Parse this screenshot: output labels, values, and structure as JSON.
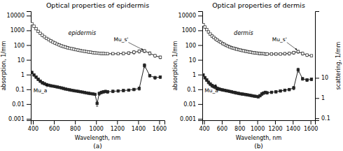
{
  "chart_data": [
    {
      "type": "line",
      "title": "Optical properties of epidermis",
      "subtitle": "(a)",
      "x_label": "Wavelength, nm",
      "y_label": "absorption, 1/mm",
      "annotations": [
        "epidermis",
        "Mu_s'",
        "Mu_a"
      ],
      "log": "y",
      "grid": false,
      "x": [
        390,
        410,
        430,
        450,
        470,
        490,
        510,
        530,
        550,
        570,
        590,
        610,
        630,
        650,
        670,
        690,
        710,
        730,
        750,
        770,
        790,
        810,
        830,
        850,
        870,
        890,
        910,
        930,
        950,
        970,
        990,
        1010,
        1030,
        1050,
        1070,
        1090,
        1110,
        1160,
        1210,
        1260,
        1310,
        1360,
        1410,
        1460,
        1510,
        1560,
        1610
      ],
      "xlim": [
        380,
        1650
      ],
      "xticks": [
        400,
        600,
        800,
        1000,
        1200,
        1400,
        1600
      ],
      "ylim": [
        0.0008,
        20000
      ],
      "yticks": [
        0.001,
        0.01,
        0.1,
        1,
        10,
        100,
        1000,
        10000
      ],
      "series": [
        {
          "color": "#222222",
          "marker": "square-open",
          "line_style": "solid",
          "values": [
            2800,
            1900,
            1300,
            850,
            620,
            460,
            360,
            285,
            235,
            195,
            160,
            138,
            118,
            103,
            90,
            80,
            73,
            66,
            61,
            57,
            53,
            49,
            46,
            43,
            40,
            38,
            36,
            34,
            33,
            31,
            30,
            29,
            28,
            27,
            27,
            26,
            26,
            26,
            26,
            27,
            29,
            33,
            38,
            40,
            28,
            19,
            15
          ],
          "error_low": [
            300,
            220,
            170,
            120,
            90,
            70,
            55,
            45,
            38,
            30,
            24,
            20,
            18,
            16,
            14,
            12,
            11,
            10,
            9,
            8,
            8,
            7,
            7,
            6,
            6,
            5,
            5,
            5,
            5,
            5,
            4,
            4,
            4,
            4,
            4,
            4,
            4,
            4,
            4,
            5,
            6,
            8,
            9,
            9,
            7,
            4,
            3
          ],
          "error_high": [
            300,
            220,
            170,
            120,
            90,
            70,
            55,
            45,
            38,
            30,
            24,
            20,
            18,
            16,
            14,
            12,
            11,
            10,
            9,
            8,
            8,
            7,
            7,
            6,
            6,
            5,
            5,
            5,
            5,
            5,
            4,
            4,
            4,
            4,
            4,
            4,
            4,
            4,
            4,
            5,
            6,
            8,
            9,
            9,
            7,
            4,
            3
          ]
        },
        {
          "color": "#222222",
          "marker": "square",
          "line_style": "solid",
          "values": [
            1.4,
            0.95,
            0.68,
            0.48,
            0.36,
            0.28,
            0.24,
            0.21,
            0.19,
            0.175,
            0.165,
            0.155,
            0.145,
            0.135,
            0.125,
            0.115,
            0.105,
            0.098,
            0.092,
            0.086,
            0.081,
            0.077,
            0.073,
            0.069,
            0.065,
            0.061,
            0.057,
            0.054,
            0.051,
            0.049,
            0.046,
            0.011,
            0.052,
            0.062,
            0.068,
            0.072,
            0.068,
            0.073,
            0.078,
            0.083,
            0.088,
            0.098,
            0.115,
            4.2,
            0.85,
            0.62,
            0.68
          ],
          "error_low": [
            0.25,
            0.18,
            0.13,
            0.09,
            0.07,
            0.055,
            0.045,
            0.038,
            0.028,
            0.022,
            0.018,
            0.016,
            0.014,
            0.012,
            0.01,
            0.009,
            0.009,
            0.008,
            0.008,
            0.007,
            0.007,
            0.006,
            0.006,
            0.005,
            0.005,
            0.005,
            0.005,
            0.004,
            0.004,
            0.004,
            0.004,
            0.004,
            0.013,
            0.014,
            0.014,
            0.014,
            0.014,
            0.014,
            0.014,
            0.014,
            0.014,
            0.018,
            0.028,
            1.3,
            0.18,
            0.14,
            0.14
          ],
          "error_high": [
            0.25,
            0.18,
            0.13,
            0.09,
            0.07,
            0.055,
            0.045,
            0.038,
            0.028,
            0.022,
            0.018,
            0.016,
            0.014,
            0.012,
            0.01,
            0.009,
            0.009,
            0.008,
            0.008,
            0.007,
            0.007,
            0.006,
            0.006,
            0.005,
            0.005,
            0.005,
            0.005,
            0.004,
            0.004,
            0.004,
            0.004,
            0.004,
            0.013,
            0.014,
            0.014,
            0.014,
            0.014,
            0.014,
            0.014,
            0.014,
            0.014,
            0.018,
            0.028,
            1.3,
            0.18,
            0.14,
            0.14
          ]
        }
      ]
    },
    {
      "type": "line",
      "title": "Optical properties of dermis",
      "subtitle": "(b)",
      "x_label": "Wavelength, nm",
      "y_label": "absorption, 1/mm",
      "y2_label": "scattering, 1/mm",
      "annotations": [
        "dermis",
        "Mu_s'",
        "Mu_a"
      ],
      "log": "y",
      "grid": false,
      "x": [
        390,
        410,
        430,
        450,
        470,
        490,
        510,
        530,
        550,
        570,
        590,
        610,
        630,
        650,
        670,
        690,
        710,
        730,
        750,
        770,
        790,
        810,
        830,
        850,
        870,
        890,
        910,
        930,
        950,
        970,
        990,
        1010,
        1030,
        1050,
        1070,
        1090,
        1110,
        1160,
        1210,
        1260,
        1310,
        1360,
        1410,
        1460,
        1510,
        1560,
        1610
      ],
      "xlim": [
        380,
        1650
      ],
      "xticks": [
        400,
        600,
        800,
        1000,
        1200,
        1400,
        1600
      ],
      "ylim": [
        0.0008,
        20000
      ],
      "yticks": [
        0.001,
        0.01,
        0.1,
        1,
        10,
        100,
        1000,
        10000
      ],
      "y2lim": [
        0.08,
        20000
      ],
      "y2ticks": [
        0.1,
        1,
        10
      ],
      "series": [
        {
          "color": "#222222",
          "marker": "square-open",
          "line_style": "solid",
          "values": [
            2400,
            1700,
            1150,
            780,
            560,
            415,
            330,
            265,
            215,
            180,
            152,
            128,
            110,
            95,
            84,
            75,
            67,
            62,
            57,
            53,
            49,
            46,
            43,
            41,
            38,
            36,
            34,
            33,
            31,
            30,
            29,
            28,
            27,
            26,
            26,
            25,
            25,
            25,
            25,
            25,
            26,
            27,
            31,
            36,
            27,
            21,
            19
          ],
          "error_low": [
            280,
            200,
            155,
            110,
            82,
            62,
            50,
            40,
            32,
            26,
            21,
            18,
            15,
            13,
            12,
            10,
            9,
            8,
            8,
            7,
            7,
            6,
            6,
            5,
            5,
            5,
            4,
            4,
            4,
            4,
            4,
            4,
            4,
            4,
            4,
            4,
            4,
            4,
            4,
            4,
            5,
            6,
            7,
            8,
            6,
            4,
            3
          ],
          "error_high": [
            280,
            200,
            155,
            110,
            82,
            62,
            50,
            40,
            32,
            26,
            21,
            18,
            15,
            13,
            12,
            10,
            9,
            8,
            8,
            7,
            7,
            6,
            6,
            5,
            5,
            5,
            4,
            4,
            4,
            4,
            4,
            4,
            4,
            4,
            4,
            4,
            4,
            4,
            4,
            4,
            5,
            6,
            7,
            8,
            6,
            4,
            3
          ]
        },
        {
          "color": "#222222",
          "marker": "square",
          "line_style": "solid",
          "values": [
            0.95,
            0.62,
            0.43,
            0.3,
            0.23,
            0.18,
            0.155,
            0.135,
            0.115,
            0.105,
            0.097,
            0.091,
            0.086,
            0.081,
            0.077,
            0.072,
            0.068,
            0.063,
            0.06,
            0.056,
            0.053,
            0.05,
            0.048,
            0.046,
            0.044,
            0.042,
            0.04,
            0.038,
            0.036,
            0.034,
            0.033,
            0.031,
            0.037,
            0.048,
            0.056,
            0.063,
            0.058,
            0.063,
            0.068,
            0.078,
            0.087,
            0.097,
            0.125,
            2.1,
            0.52,
            0.43,
            0.48
          ],
          "error_low": [
            0.18,
            0.13,
            0.09,
            0.07,
            0.055,
            0.044,
            0.036,
            0.028,
            0.022,
            0.018,
            0.016,
            0.014,
            0.012,
            0.01,
            0.009,
            0.009,
            0.008,
            0.007,
            0.007,
            0.006,
            0.005,
            0.005,
            0.005,
            0.004,
            0.004,
            0.004,
            0.003,
            0.003,
            0.003,
            0.003,
            0.003,
            0.003,
            0.007,
            0.011,
            0.011,
            0.011,
            0.011,
            0.011,
            0.011,
            0.014,
            0.016,
            0.018,
            0.032,
            0.65,
            0.11,
            0.09,
            0.09
          ],
          "error_high": [
            0.18,
            0.13,
            0.09,
            0.07,
            0.055,
            0.044,
            0.036,
            0.028,
            0.022,
            0.018,
            0.016,
            0.014,
            0.012,
            0.01,
            0.009,
            0.009,
            0.008,
            0.007,
            0.007,
            0.006,
            0.005,
            0.005,
            0.005,
            0.004,
            0.004,
            0.004,
            0.003,
            0.003,
            0.003,
            0.003,
            0.003,
            0.003,
            0.007,
            0.011,
            0.011,
            0.011,
            0.011,
            0.011,
            0.011,
            0.014,
            0.016,
            0.018,
            0.032,
            0.65,
            0.11,
            0.09,
            0.09
          ]
        }
      ]
    }
  ]
}
